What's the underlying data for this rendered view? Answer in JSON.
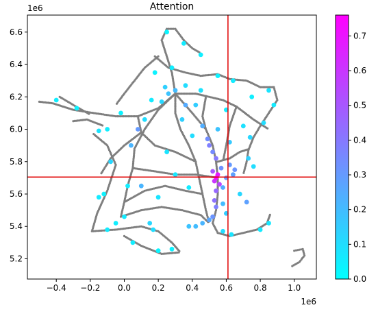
{
  "chart_data": {
    "type": "scatter",
    "title": "Attention",
    "xlabel": "",
    "ylabel": "",
    "x_multiplier": "1e6",
    "y_multiplier": "1e6",
    "xlim": [
      -0.57,
      1.13
    ],
    "ylim": [
      5.075,
      6.705
    ],
    "x_ticks": [
      -0.4,
      -0.2,
      0.0,
      0.2,
      0.4,
      0.6,
      0.8,
      1.0
    ],
    "x_tick_labels": [
      "−0.4",
      "−0.2",
      "0.0",
      "0.2",
      "0.4",
      "0.6",
      "0.8",
      "1.0"
    ],
    "y_ticks": [
      5.2,
      5.4,
      5.6,
      5.8,
      6.0,
      6.2,
      6.4,
      6.6
    ],
    "y_tick_labels": [
      "5.2",
      "5.4",
      "5.6",
      "5.8",
      "6.0",
      "6.2",
      "6.4",
      "6.6"
    ],
    "grid": false,
    "crosshair": {
      "x": 0.61,
      "y": 5.705,
      "color": "#e00000"
    },
    "colorbar": {
      "colormap": "cool",
      "range": [
        0.0,
        0.76
      ],
      "ticks": [
        0.0,
        0.1,
        0.2,
        0.3,
        0.4,
        0.5,
        0.6,
        0.7
      ],
      "tick_labels": [
        "0.0",
        "0.1",
        "0.2",
        "0.3",
        "0.4",
        "0.5",
        "0.6",
        "0.7"
      ],
      "color_low": "#00ffff",
      "color_high": "#ff00ff"
    },
    "background_color": "#7f7f7f",
    "background_network": [
      [
        [
          -0.5,
          6.17
        ],
        [
          -0.42,
          6.16
        ],
        [
          -0.3,
          6.12
        ],
        [
          -0.18,
          6.1
        ],
        [
          -0.05,
          6.08
        ],
        [
          0.08,
          6.08
        ],
        [
          0.2,
          6.13
        ],
        [
          0.3,
          6.22
        ]
      ],
      [
        [
          -0.38,
          6.2
        ],
        [
          -0.3,
          6.15
        ],
        [
          -0.2,
          6.09
        ]
      ],
      [
        [
          -0.3,
          6.05
        ],
        [
          -0.22,
          6.06
        ],
        [
          -0.12,
          6.02
        ]
      ],
      [
        [
          -0.18,
          5.97
        ],
        [
          -0.1,
          5.9
        ],
        [
          -0.05,
          5.78
        ],
        [
          -0.1,
          5.62
        ],
        [
          -0.16,
          5.48
        ],
        [
          -0.19,
          5.37
        ]
      ],
      [
        [
          -0.19,
          5.37
        ],
        [
          -0.05,
          5.38
        ],
        [
          0.1,
          5.4
        ],
        [
          0.2,
          5.37
        ],
        [
          0.28,
          5.3
        ],
        [
          0.33,
          5.24
        ]
      ],
      [
        [
          0.0,
          5.34
        ],
        [
          0.1,
          5.28
        ],
        [
          0.22,
          5.23
        ],
        [
          0.33,
          5.24
        ]
      ],
      [
        [
          0.3,
          6.22
        ],
        [
          0.28,
          6.35
        ],
        [
          0.25,
          6.45
        ],
        [
          0.22,
          6.55
        ],
        [
          0.25,
          6.62
        ],
        [
          0.3,
          6.62
        ],
        [
          0.35,
          6.55
        ],
        [
          0.4,
          6.5
        ],
        [
          0.45,
          6.47
        ]
      ],
      [
        [
          0.18,
          6.45
        ],
        [
          0.26,
          6.38
        ],
        [
          0.36,
          6.35
        ],
        [
          0.45,
          6.33
        ],
        [
          0.55,
          6.34
        ],
        [
          0.62,
          6.31
        ]
      ],
      [
        [
          0.62,
          6.31
        ],
        [
          0.72,
          6.3
        ],
        [
          0.8,
          6.26
        ],
        [
          0.88,
          6.26
        ],
        [
          0.9,
          6.18
        ],
        [
          0.85,
          6.1
        ],
        [
          0.8,
          6.02
        ]
      ],
      [
        [
          0.3,
          6.22
        ],
        [
          0.42,
          6.22
        ],
        [
          0.5,
          6.2
        ],
        [
          0.58,
          6.18
        ],
        [
          0.66,
          6.14
        ],
        [
          0.76,
          6.06
        ],
        [
          0.85,
          6.0
        ]
      ],
      [
        [
          0.8,
          6.02
        ],
        [
          0.76,
          5.95
        ],
        [
          0.73,
          5.87
        ],
        [
          0.72,
          5.8
        ],
        [
          0.7,
          5.72
        ]
      ],
      [
        [
          0.3,
          6.22
        ],
        [
          0.3,
          6.1
        ],
        [
          0.33,
          6.0
        ],
        [
          0.38,
          5.9
        ],
        [
          0.42,
          5.8
        ],
        [
          0.44,
          5.7
        ],
        [
          0.46,
          5.6
        ],
        [
          0.48,
          5.5
        ],
        [
          0.5,
          5.42
        ]
      ],
      [
        [
          0.3,
          6.22
        ],
        [
          0.2,
          6.12
        ],
        [
          0.12,
          6.0
        ],
        [
          0.06,
          5.88
        ],
        [
          0.05,
          5.76
        ],
        [
          0.02,
          5.65
        ],
        [
          0.0,
          5.55
        ],
        [
          -0.02,
          5.46
        ]
      ],
      [
        [
          0.3,
          6.22
        ],
        [
          0.4,
          6.1
        ],
        [
          0.48,
          6.0
        ],
        [
          0.52,
          5.9
        ],
        [
          0.54,
          5.8
        ],
        [
          0.55,
          5.7
        ],
        [
          0.55,
          5.6
        ],
        [
          0.54,
          5.5
        ],
        [
          0.52,
          5.42
        ],
        [
          0.55,
          5.36
        ],
        [
          0.62,
          5.34
        ],
        [
          0.7,
          5.36
        ]
      ],
      [
        [
          0.7,
          5.36
        ],
        [
          0.78,
          5.38
        ],
        [
          0.84,
          5.42
        ],
        [
          0.86,
          5.48
        ]
      ],
      [
        [
          -0.02,
          5.46
        ],
        [
          0.1,
          5.5
        ],
        [
          0.22,
          5.52
        ],
        [
          0.34,
          5.5
        ],
        [
          0.45,
          5.47
        ],
        [
          0.5,
          5.42
        ]
      ],
      [
        [
          0.05,
          5.76
        ],
        [
          0.18,
          5.74
        ],
        [
          0.3,
          5.72
        ],
        [
          0.42,
          5.72
        ],
        [
          0.55,
          5.7
        ]
      ],
      [
        [
          0.08,
          6.08
        ],
        [
          0.1,
          5.98
        ],
        [
          0.18,
          5.9
        ],
        [
          0.3,
          5.86
        ],
        [
          0.42,
          5.8
        ]
      ],
      [
        [
          0.55,
          5.8
        ],
        [
          0.62,
          5.82
        ],
        [
          0.68,
          5.86
        ],
        [
          0.74,
          5.88
        ]
      ],
      [
        [
          0.0,
          5.55
        ],
        [
          0.12,
          5.62
        ],
        [
          0.24,
          5.65
        ],
        [
          0.36,
          5.62
        ],
        [
          0.46,
          5.6
        ]
      ],
      [
        [
          0.1,
          5.98
        ],
        [
          0.0,
          5.9
        ],
        [
          -0.08,
          5.82
        ],
        [
          -0.14,
          5.72
        ]
      ],
      [
        [
          0.48,
          6.2
        ],
        [
          0.46,
          6.08
        ],
        [
          0.48,
          6.0
        ]
      ],
      [
        [
          0.66,
          6.14
        ],
        [
          0.62,
          6.02
        ],
        [
          0.6,
          5.9
        ],
        [
          0.58,
          5.8
        ]
      ],
      [
        [
          0.2,
          6.45
        ],
        [
          0.12,
          6.38
        ],
        [
          0.06,
          6.3
        ],
        [
          0.0,
          6.22
        ],
        [
          -0.05,
          6.15
        ]
      ],
      [
        [
          1.0,
          5.25
        ],
        [
          1.05,
          5.26
        ],
        [
          1.06,
          5.22
        ],
        [
          1.03,
          5.18
        ],
        [
          0.98,
          5.15
        ]
      ]
    ],
    "attention_points": [
      {
        "x": 0.54,
        "y": 5.7,
        "v": 0.72
      },
      {
        "x": 0.55,
        "y": 5.72,
        "v": 0.68
      },
      {
        "x": 0.53,
        "y": 5.68,
        "v": 0.6
      },
      {
        "x": 0.56,
        "y": 5.66,
        "v": 0.55
      },
      {
        "x": 0.52,
        "y": 5.74,
        "v": 0.5
      },
      {
        "x": 0.54,
        "y": 5.62,
        "v": 0.45
      },
      {
        "x": 0.53,
        "y": 5.56,
        "v": 0.42
      },
      {
        "x": 0.54,
        "y": 5.52,
        "v": 0.38
      },
      {
        "x": 0.54,
        "y": 5.82,
        "v": 0.4
      },
      {
        "x": 0.5,
        "y": 5.9,
        "v": 0.38
      },
      {
        "x": 0.49,
        "y": 5.94,
        "v": 0.34
      },
      {
        "x": 0.52,
        "y": 5.86,
        "v": 0.35
      },
      {
        "x": 0.62,
        "y": 5.78,
        "v": 0.3
      },
      {
        "x": 0.65,
        "y": 5.75,
        "v": 0.32
      },
      {
        "x": 0.64,
        "y": 5.72,
        "v": 0.28
      },
      {
        "x": 0.6,
        "y": 5.7,
        "v": 0.3
      },
      {
        "x": 0.57,
        "y": 5.76,
        "v": 0.33
      },
      {
        "x": 0.58,
        "y": 5.64,
        "v": 0.25
      },
      {
        "x": 0.72,
        "y": 5.55,
        "v": 0.28
      },
      {
        "x": 0.46,
        "y": 6.02,
        "v": 0.24
      },
      {
        "x": 0.36,
        "y": 6.15,
        "v": 0.25
      },
      {
        "x": 0.08,
        "y": 6.0,
        "v": 0.3
      },
      {
        "x": 0.04,
        "y": 5.9,
        "v": 0.22
      },
      {
        "x": 0.1,
        "y": 5.65,
        "v": 0.22
      },
      {
        "x": 0.52,
        "y": 5.46,
        "v": 0.32
      },
      {
        "x": 0.5,
        "y": 5.44,
        "v": 0.26
      },
      {
        "x": 0.46,
        "y": 5.42,
        "v": 0.22
      },
      {
        "x": 0.42,
        "y": 5.4,
        "v": 0.2
      },
      {
        "x": 0.38,
        "y": 5.4,
        "v": 0.18
      },
      {
        "x": 0.3,
        "y": 6.24,
        "v": 0.2
      },
      {
        "x": 0.26,
        "y": 6.22,
        "v": 0.18
      },
      {
        "x": 0.24,
        "y": 6.26,
        "v": 0.14
      },
      {
        "x": 0.22,
        "y": 6.17,
        "v": 0.12
      },
      {
        "x": 0.15,
        "y": 5.42,
        "v": 0.12
      },
      {
        "x": 0.17,
        "y": 5.38,
        "v": 0.1
      },
      {
        "x": -0.1,
        "y": 5.38,
        "v": 0.06
      },
      {
        "x": -0.05,
        "y": 5.42,
        "v": 0.05
      },
      {
        "x": -0.15,
        "y": 5.58,
        "v": 0.06
      },
      {
        "x": -0.12,
        "y": 5.6,
        "v": 0.04
      },
      {
        "x": -0.4,
        "y": 6.18,
        "v": 0.05
      },
      {
        "x": -0.28,
        "y": 6.13,
        "v": 0.04
      },
      {
        "x": -0.15,
        "y": 5.99,
        "v": 0.08
      },
      {
        "x": -0.1,
        "y": 6.0,
        "v": 0.05
      },
      {
        "x": 0.18,
        "y": 6.35,
        "v": 0.04
      },
      {
        "x": 0.25,
        "y": 6.6,
        "v": 0.03
      },
      {
        "x": 0.35,
        "y": 6.53,
        "v": 0.06
      },
      {
        "x": 0.45,
        "y": 6.46,
        "v": 0.05
      },
      {
        "x": 0.55,
        "y": 6.33,
        "v": 0.04
      },
      {
        "x": 0.64,
        "y": 6.3,
        "v": 0.06
      },
      {
        "x": 0.75,
        "y": 6.2,
        "v": 0.05
      },
      {
        "x": 0.85,
        "y": 6.24,
        "v": 0.08
      },
      {
        "x": 0.88,
        "y": 6.15,
        "v": 0.06
      },
      {
        "x": 0.82,
        "y": 6.04,
        "v": 0.1
      },
      {
        "x": 0.74,
        "y": 5.95,
        "v": 0.12
      },
      {
        "x": 0.73,
        "y": 5.82,
        "v": 0.14
      },
      {
        "x": 0.76,
        "y": 5.77,
        "v": 0.1
      },
      {
        "x": 0.68,
        "y": 5.6,
        "v": 0.12
      },
      {
        "x": 0.63,
        "y": 5.35,
        "v": 0.08
      },
      {
        "x": 0.58,
        "y": 5.37,
        "v": 0.1
      },
      {
        "x": 0.8,
        "y": 5.38,
        "v": 0.06
      },
      {
        "x": 0.85,
        "y": 5.42,
        "v": 0.07
      },
      {
        "x": 0.28,
        "y": 5.26,
        "v": 0.04
      },
      {
        "x": 0.2,
        "y": 5.25,
        "v": 0.03
      },
      {
        "x": 0.05,
        "y": 5.3,
        "v": 0.05
      },
      {
        "x": 0.0,
        "y": 5.46,
        "v": 0.06
      },
      {
        "x": 0.02,
        "y": 5.65,
        "v": 0.05
      },
      {
        "x": -0.08,
        "y": 5.8,
        "v": 0.12
      },
      {
        "x": 0.25,
        "y": 5.86,
        "v": 0.08
      },
      {
        "x": 0.3,
        "y": 5.72,
        "v": 0.07
      },
      {
        "x": 0.38,
        "y": 5.64,
        "v": 0.06
      },
      {
        "x": 0.4,
        "y": 5.96,
        "v": 0.1
      },
      {
        "x": 0.34,
        "y": 6.06,
        "v": 0.14
      },
      {
        "x": 0.45,
        "y": 6.24,
        "v": 0.08
      },
      {
        "x": 0.6,
        "y": 6.12,
        "v": 0.06
      },
      {
        "x": 0.55,
        "y": 6.0,
        "v": 0.18
      },
      {
        "x": 0.62,
        "y": 5.92,
        "v": 0.16
      },
      {
        "x": 0.58,
        "y": 5.54,
        "v": 0.2
      },
      {
        "x": 0.6,
        "y": 5.48,
        "v": 0.15
      },
      {
        "x": 0.12,
        "y": 6.06,
        "v": 0.1
      },
      {
        "x": 0.16,
        "y": 6.18,
        "v": 0.06
      },
      {
        "x": 0.28,
        "y": 6.38,
        "v": 0.05
      },
      {
        "x": 0.36,
        "y": 6.27,
        "v": 0.1
      },
      {
        "x": 0.42,
        "y": 6.15,
        "v": 0.15
      },
      {
        "x": 0.2,
        "y": 5.58,
        "v": 0.08
      },
      {
        "x": -0.02,
        "y": 6.1,
        "v": 0.04
      },
      {
        "x": 0.7,
        "y": 6.02,
        "v": 0.09
      }
    ]
  }
}
